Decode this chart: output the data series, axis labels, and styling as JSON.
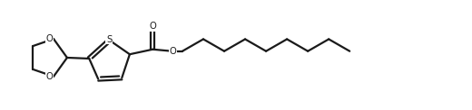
{
  "bg_color": "#ffffff",
  "line_color": "#1a1a1a",
  "line_width": 1.6,
  "figsize": [
    5.2,
    1.22
  ],
  "dpi": 100,
  "xlim": [
    0.0,
    5.2
  ],
  "ylim": [
    0.0,
    1.22
  ]
}
